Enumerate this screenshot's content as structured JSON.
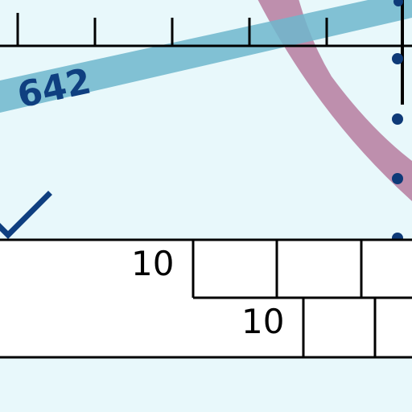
{
  "colors": {
    "background": "#e8f8fb",
    "ink": "#000000",
    "band_blue": "#6fb7cc",
    "band_mauve": "#b06c93",
    "dot_navy": "#0e3a78",
    "label_navy": "#0f3f80",
    "white": "#ffffff"
  },
  "band_label": "642",
  "checkmark_icon": "check-icon",
  "strip": {
    "upper_label": "10",
    "lower_label": "10"
  }
}
